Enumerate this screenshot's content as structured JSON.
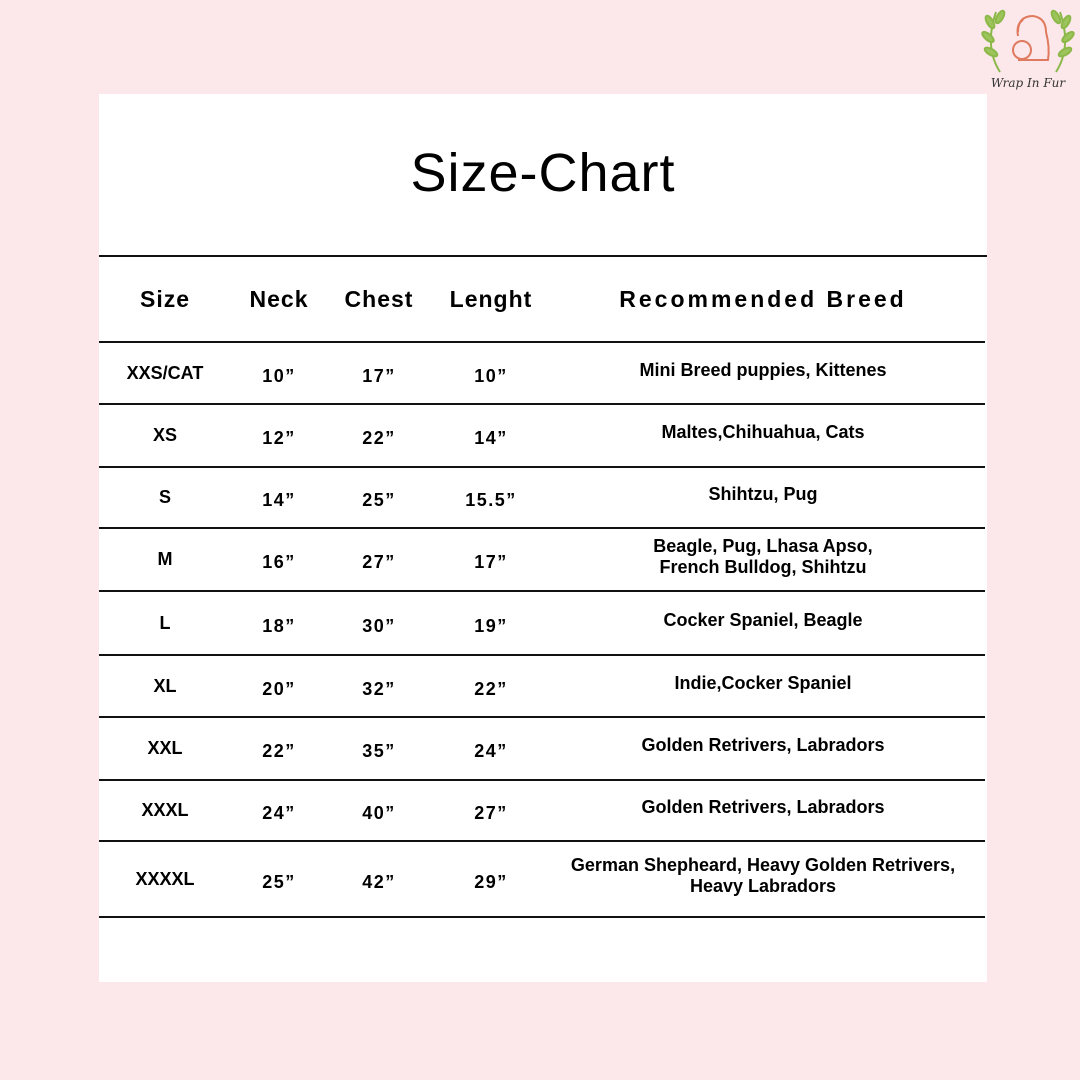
{
  "logo": {
    "text": "Wrap In Fur",
    "icon": "dog-and-puppy-laurel-logo",
    "colors": {
      "dog": "#e07a5f",
      "leaves": "#8cb84a"
    }
  },
  "title": "Size-Chart",
  "table": {
    "headers": [
      "Size",
      "Neck",
      "Chest",
      "Lenght",
      "Recommended Breed"
    ],
    "rows": [
      [
        "XXS/CAT",
        "10”",
        "17”",
        "10”",
        "Mini Breed puppies, Kittenes"
      ],
      [
        "XS",
        "12”",
        "22”",
        "14”",
        "Maltes,Chihuahua, Cats"
      ],
      [
        "S",
        "14”",
        "25”",
        "15.5”",
        "Shihtzu, Pug"
      ],
      [
        "M",
        "16”",
        "27”",
        "17”",
        "Beagle, Pug, Lhasa Apso,\nFrench Bulldog, Shihtzu"
      ],
      [
        "L",
        "18”",
        "30”",
        "19”",
        "Cocker Spaniel, Beagle"
      ],
      [
        "XL",
        "20”",
        "32”",
        "22”",
        "Indie,Cocker Spaniel"
      ],
      [
        "XXL",
        "22”",
        "35”",
        "24”",
        "Golden Retrivers, Labradors"
      ],
      [
        "XXXL",
        "24”",
        "40”",
        "27”",
        "Golden Retrivers, Labradors"
      ],
      [
        "XXXXL",
        "25”",
        "42”",
        "29”",
        "German Shepheard, Heavy Golden Retrivers,\nHeavy Labradors"
      ]
    ]
  }
}
